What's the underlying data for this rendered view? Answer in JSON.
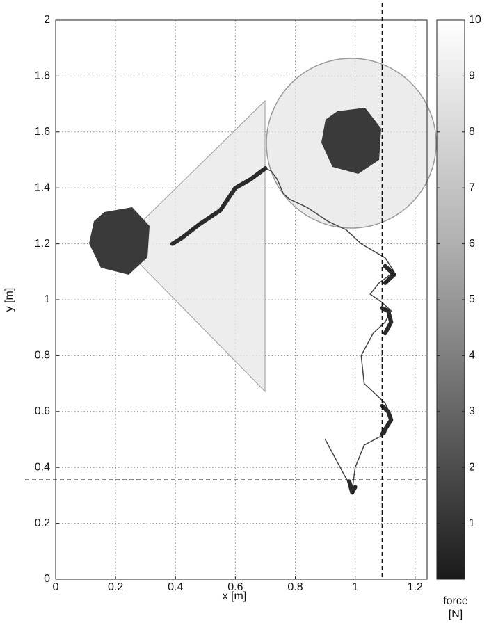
{
  "chart_data": {
    "type": "line",
    "x_label": "x [m]",
    "y_label": "y [m]",
    "xlim": [
      0,
      1.24
    ],
    "ylim": [
      0,
      2
    ],
    "xticks": [
      0,
      0.2,
      0.4,
      0.6,
      0.8,
      1,
      1.2
    ],
    "yticks": [
      0,
      0.2,
      0.4,
      0.6,
      0.8,
      1,
      1.2,
      1.4,
      1.6,
      1.8,
      2
    ],
    "grid": true,
    "series": [
      {
        "color": "#444444",
        "width": 1.5,
        "x": [
          0.9,
          0.99,
          1.0,
          1.03,
          1.1,
          1.12,
          1.1,
          1.03,
          1.02,
          1.06,
          1.1,
          1.12,
          1.09,
          1.05,
          1.08,
          1.13,
          1.1,
          1.02,
          0.97,
          0.91,
          0.84,
          0.78,
          0.76,
          0.74,
          0.72,
          0.7
        ],
        "y": [
          0.5,
          0.32,
          0.4,
          0.48,
          0.52,
          0.58,
          0.63,
          0.7,
          0.8,
          0.88,
          0.92,
          0.96,
          0.99,
          1.02,
          1.06,
          1.1,
          1.15,
          1.2,
          1.25,
          1.28,
          1.33,
          1.36,
          1.38,
          1.43,
          1.46,
          1.47
        ]
      },
      {
        "color": "#2a2a2a",
        "width": 6,
        "x": [
          0.39,
          0.42,
          0.48,
          0.55,
          0.6,
          0.65,
          0.7,
          null,
          1.1,
          1.13,
          1.1,
          null,
          1.1,
          1.12,
          1.11,
          1.09,
          null,
          1.09,
          1.12,
          1.11,
          1.09,
          null,
          0.98,
          0.99,
          1.0
        ],
        "y": [
          1.2,
          1.22,
          1.27,
          1.32,
          1.4,
          1.43,
          1.47,
          null,
          1.06,
          1.09,
          1.12,
          null,
          0.88,
          0.92,
          0.96,
          0.97,
          null,
          0.52,
          0.57,
          0.6,
          0.62,
          null,
          0.35,
          0.31,
          0.33
        ]
      }
    ],
    "vlines": [
      1.09
    ],
    "hlines": [
      0.355
    ],
    "colorbar": {
      "lim": [
        0,
        10
      ],
      "ticks": [
        1,
        2,
        3,
        4,
        5,
        6,
        7,
        8,
        9,
        10
      ],
      "label": "force [N]"
    }
  }
}
